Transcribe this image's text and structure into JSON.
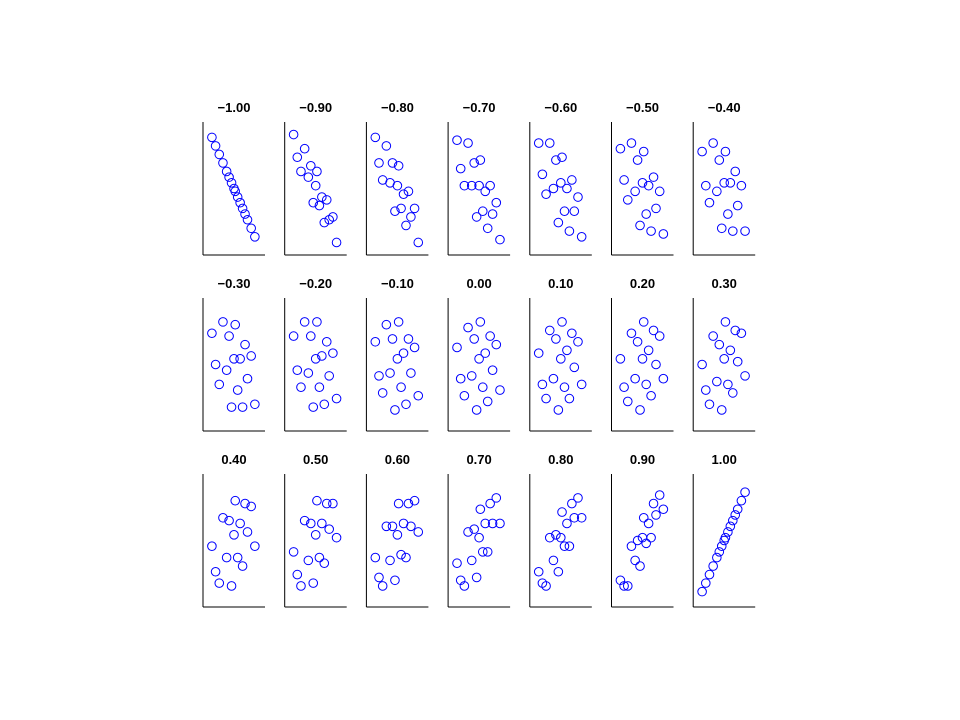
{
  "chart_data": [
    {
      "type": "scatter",
      "title": "−1.00",
      "color": "#0000ff",
      "xlim": [
        -2.2,
        2.2
      ],
      "ylim": [
        -2.2,
        2.2
      ],
      "x": [
        -1.8,
        -1.2,
        -0.9,
        -0.6,
        -0.4,
        -0.2,
        0,
        0.1,
        0.3,
        0.5,
        0.7,
        0.9,
        1.1,
        1.4,
        -1.5,
        1.7
      ],
      "values": [
        1.8,
        1.2,
        0.9,
        0.6,
        0.4,
        0.2,
        0,
        -0.1,
        -0.3,
        -0.5,
        -0.7,
        -0.9,
        -1.1,
        -1.4,
        1.5,
        -1.7
      ]
    },
    {
      "type": "scatter",
      "title": "−0.90",
      "color": "#0000ff",
      "xlim": [
        -2.2,
        2.2
      ],
      "ylim": [
        -2.2,
        2.2
      ],
      "x": [
        -1.8,
        -1.2,
        -0.9,
        -0.6,
        -0.4,
        -0.2,
        0,
        0.1,
        0.3,
        0.5,
        0.7,
        0.9,
        1.1,
        1.4,
        -1.5,
        1.7
      ],
      "values": [
        1.9,
        0.6,
        1.4,
        0.4,
        0.8,
        -0.5,
        0.1,
        0.6,
        -0.6,
        -0.3,
        -1.2,
        -0.4,
        -1.1,
        -1.0,
        1.1,
        -1.9
      ]
    },
    {
      "type": "scatter",
      "title": "−0.80",
      "color": "#0000ff",
      "xlim": [
        -2.2,
        2.2
      ],
      "ylim": [
        -2.2,
        2.2
      ],
      "x": [
        -1.8,
        -1.2,
        -0.9,
        -0.6,
        -0.4,
        -0.2,
        0,
        0.1,
        0.3,
        0.5,
        0.7,
        0.9,
        1.1,
        1.4,
        -1.5,
        1.7
      ],
      "values": [
        1.8,
        0.3,
        1.5,
        0.2,
        0.9,
        -0.8,
        0.1,
        0.8,
        -0.7,
        -0.2,
        -1.3,
        -0.1,
        -1.0,
        -0.7,
        0.9,
        -1.9
      ]
    },
    {
      "type": "scatter",
      "title": "−0.70",
      "color": "#0000ff",
      "xlim": [
        -2.2,
        2.2
      ],
      "ylim": [
        -2.2,
        2.2
      ],
      "x": [
        -1.8,
        -1.2,
        -0.9,
        -0.6,
        -0.4,
        -0.2,
        0,
        0.1,
        0.3,
        0.5,
        0.7,
        0.9,
        1.1,
        1.4,
        -1.5,
        1.7
      ],
      "values": [
        1.7,
        0.1,
        1.6,
        0.1,
        0.9,
        -1.0,
        0.1,
        1.0,
        -0.8,
        -0.1,
        -1.4,
        0.1,
        -0.9,
        -0.5,
        0.7,
        -1.8
      ]
    },
    {
      "type": "scatter",
      "title": "−0.60",
      "color": "#0000ff",
      "xlim": [
        -2.2,
        2.2
      ],
      "ylim": [
        -2.2,
        2.2
      ],
      "x": [
        -1.8,
        -1.2,
        -0.9,
        -0.6,
        -0.4,
        -0.2,
        0,
        0.1,
        0.3,
        0.5,
        0.7,
        0.9,
        1.1,
        1.4,
        -1.5,
        1.7
      ],
      "values": [
        1.6,
        -0.2,
        1.6,
        0,
        1.0,
        -1.2,
        0.2,
        1.1,
        -0.8,
        0,
        -1.5,
        0.3,
        -0.8,
        -0.3,
        0.5,
        -1.7
      ]
    },
    {
      "type": "scatter",
      "title": "−0.50",
      "color": "#0000ff",
      "xlim": [
        -2.2,
        2.2
      ],
      "ylim": [
        -2.2,
        2.2
      ],
      "x": [
        -1.8,
        -1.2,
        -0.9,
        -0.6,
        -0.4,
        -0.2,
        0,
        0.1,
        0.3,
        0.5,
        0.7,
        0.9,
        1.1,
        1.4,
        -1.5,
        1.7
      ],
      "values": [
        1.4,
        -0.4,
        1.6,
        -0.1,
        1.0,
        -1.3,
        0.2,
        1.3,
        -0.9,
        0.1,
        -1.5,
        0.4,
        -0.7,
        -0.1,
        0.3,
        -1.6
      ]
    },
    {
      "type": "scatter",
      "title": "−0.40",
      "color": "#0000ff",
      "xlim": [
        -2.2,
        2.2
      ],
      "ylim": [
        -2.2,
        2.2
      ],
      "x": [
        -1.8,
        -1.2,
        -0.9,
        -0.6,
        -0.4,
        -0.2,
        0,
        0.1,
        0.3,
        0.5,
        0.7,
        0.9,
        1.1,
        1.4,
        -1.5,
        1.7
      ],
      "values": [
        1.3,
        -0.5,
        1.6,
        -0.1,
        1.0,
        -1.4,
        0.2,
        1.3,
        -0.9,
        0.2,
        -1.5,
        0.6,
        -0.6,
        0.1,
        0.1,
        -1.5
      ]
    },
    {
      "type": "scatter",
      "title": "−0.30",
      "color": "#0000ff",
      "xlim": [
        -2.2,
        2.2
      ],
      "ylim": [
        -2.2,
        2.2
      ],
      "x": [
        -1.8,
        -1.2,
        -0.9,
        -0.6,
        -0.4,
        -0.2,
        0,
        0.1,
        0.3,
        0.5,
        0.7,
        0.9,
        1.1,
        1.4,
        -1.5,
        1.7
      ],
      "values": [
        1.1,
        -0.7,
        1.5,
        -0.2,
        1.0,
        -1.5,
        0.2,
        1.4,
        -0.9,
        0.2,
        -1.5,
        0.7,
        -0.5,
        0.3,
        0,
        -1.4
      ]
    },
    {
      "type": "scatter",
      "title": "−0.20",
      "color": "#0000ff",
      "xlim": [
        -2.2,
        2.2
      ],
      "ylim": [
        -2.2,
        2.2
      ],
      "x": [
        -1.8,
        -1.2,
        -0.9,
        -0.6,
        -0.4,
        -0.2,
        0,
        0.1,
        0.3,
        0.5,
        0.7,
        0.9,
        1.1,
        1.4,
        -1.5,
        1.7
      ],
      "values": [
        1.0,
        -0.8,
        1.5,
        -0.3,
        1.0,
        -1.5,
        0.2,
        1.5,
        -0.8,
        0.3,
        -1.4,
        0.8,
        -0.4,
        0.4,
        -0.2,
        -1.2
      ]
    },
    {
      "type": "scatter",
      "title": "−0.10",
      "color": "#0000ff",
      "xlim": [
        -2.2,
        2.2
      ],
      "ylim": [
        -2.2,
        2.2
      ],
      "x": [
        -1.8,
        -1.2,
        -0.9,
        -0.6,
        -0.4,
        -0.2,
        0,
        0.1,
        0.3,
        0.5,
        0.7,
        0.9,
        1.1,
        1.4,
        -1.5,
        1.7
      ],
      "values": [
        0.8,
        -1.0,
        1.4,
        -0.3,
        0.9,
        -1.6,
        0.2,
        1.5,
        -0.8,
        0.4,
        -1.4,
        0.9,
        -0.3,
        0.6,
        -0.4,
        -1.1
      ]
    },
    {
      "type": "scatter",
      "title": "0.00",
      "color": "#0000ff",
      "xlim": [
        -2.2,
        2.2
      ],
      "ylim": [
        -2.2,
        2.2
      ],
      "x": [
        -1.8,
        -1.2,
        -0.9,
        -0.6,
        -0.4,
        -0.2,
        0,
        0.1,
        0.3,
        0.5,
        0.7,
        0.9,
        1.1,
        1.4,
        -1.5,
        1.7
      ],
      "values": [
        0.6,
        -1.1,
        1.3,
        -0.4,
        0.9,
        -1.6,
        0.2,
        1.5,
        -0.8,
        0.4,
        -1.3,
        1.0,
        -0.2,
        0.7,
        -0.5,
        -0.9
      ]
    },
    {
      "type": "scatter",
      "title": "0.10",
      "color": "#0000ff",
      "xlim": [
        -2.2,
        2.2
      ],
      "ylim": [
        -2.2,
        2.2
      ],
      "x": [
        -1.8,
        -1.2,
        -0.9,
        -0.6,
        -0.4,
        -0.2,
        0,
        0.1,
        0.3,
        0.5,
        0.7,
        0.9,
        1.1,
        1.4,
        -1.5,
        1.7
      ],
      "values": [
        0.4,
        -1.2,
        1.2,
        -0.5,
        0.9,
        -1.6,
        0.2,
        1.5,
        -0.8,
        0.5,
        -1.2,
        1.1,
        -0.1,
        0.8,
        -0.7,
        -0.7
      ]
    },
    {
      "type": "scatter",
      "title": "0.20",
      "color": "#0000ff",
      "xlim": [
        -2.2,
        2.2
      ],
      "ylim": [
        -2.2,
        2.2
      ],
      "x": [
        -1.8,
        -1.2,
        -0.9,
        -0.6,
        -0.4,
        -0.2,
        0,
        0.1,
        0.3,
        0.5,
        0.7,
        0.9,
        1.1,
        1.4,
        -1.5,
        1.7
      ],
      "values": [
        0.2,
        -1.3,
        1.1,
        -0.5,
        0.8,
        -1.6,
        0.2,
        1.5,
        -0.7,
        0.5,
        -1.1,
        1.2,
        0,
        1.0,
        -0.8,
        -0.5
      ]
    },
    {
      "type": "scatter",
      "title": "0.30",
      "color": "#0000ff",
      "xlim": [
        -2.2,
        2.2
      ],
      "ylim": [
        -2.2,
        2.2
      ],
      "x": [
        -1.8,
        -1.2,
        -0.9,
        -0.6,
        -0.4,
        -0.2,
        0,
        0.1,
        0.3,
        0.5,
        0.7,
        0.9,
        1.1,
        1.4,
        -1.5,
        1.7
      ],
      "values": [
        0,
        -1.4,
        1.0,
        -0.6,
        0.7,
        -1.6,
        0.2,
        1.5,
        -0.7,
        0.5,
        -1.0,
        1.2,
        0.1,
        1.1,
        -0.9,
        -0.4
      ]
    },
    {
      "type": "scatter",
      "title": "0.40",
      "color": "#0000ff",
      "xlim": [
        -2.2,
        2.2
      ],
      "ylim": [
        -2.2,
        2.2
      ],
      "x": [
        -1.8,
        -1.2,
        -0.9,
        -0.6,
        -0.4,
        -0.2,
        0,
        0.1,
        0.3,
        0.5,
        0.7,
        0.9,
        1.1,
        1.4,
        -1.5,
        1.7
      ],
      "values": [
        -0.2,
        -1.5,
        0.8,
        -0.6,
        0.7,
        -1.6,
        0.2,
        1.4,
        -0.6,
        0.6,
        -0.9,
        1.3,
        0.3,
        1.2,
        -1.1,
        -0.2
      ]
    },
    {
      "type": "scatter",
      "title": "0.50",
      "color": "#0000ff",
      "xlim": [
        -2.2,
        2.2
      ],
      "ylim": [
        -2.2,
        2.2
      ],
      "x": [
        -1.8,
        -1.2,
        -0.9,
        -0.6,
        -0.4,
        -0.2,
        0,
        0.1,
        0.3,
        0.5,
        0.7,
        0.9,
        1.1,
        1.4,
        -1.5,
        1.7
      ],
      "values": [
        -0.4,
        -1.6,
        0.7,
        -0.7,
        0.6,
        -1.5,
        0.2,
        1.4,
        -0.6,
        0.6,
        -0.8,
        1.3,
        0.4,
        1.3,
        -1.2,
        0.1
      ]
    },
    {
      "type": "scatter",
      "title": "0.60",
      "color": "#0000ff",
      "xlim": [
        -2.2,
        2.2
      ],
      "ylim": [
        -2.2,
        2.2
      ],
      "x": [
        -1.8,
        -1.2,
        -0.9,
        -0.6,
        -0.4,
        -0.2,
        0,
        0.1,
        0.3,
        0.5,
        0.7,
        0.9,
        1.1,
        1.4,
        -1.5,
        1.7
      ],
      "values": [
        -0.6,
        -1.6,
        0.5,
        -0.7,
        0.5,
        -1.4,
        0.2,
        1.3,
        -0.5,
        0.6,
        -0.6,
        1.3,
        0.5,
        1.4,
        -1.3,
        0.3
      ]
    },
    {
      "type": "scatter",
      "title": "0.70",
      "color": "#0000ff",
      "xlim": [
        -2.2,
        2.2
      ],
      "ylim": [
        -2.2,
        2.2
      ],
      "x": [
        -1.8,
        -1.2,
        -0.9,
        -0.6,
        -0.4,
        -0.2,
        0,
        0.1,
        0.3,
        0.5,
        0.7,
        0.9,
        1.1,
        1.4,
        -1.5,
        1.7
      ],
      "values": [
        -0.8,
        -1.6,
        0.3,
        -0.7,
        0.4,
        -1.3,
        0.1,
        1.1,
        -0.4,
        0.6,
        -0.4,
        1.3,
        0.6,
        1.5,
        -1.4,
        0.6
      ]
    },
    {
      "type": "scatter",
      "title": "0.80",
      "color": "#0000ff",
      "xlim": [
        -2.2,
        2.2
      ],
      "ylim": [
        -2.2,
        2.2
      ],
      "x": [
        -1.8,
        -1.2,
        -0.9,
        -0.6,
        -0.4,
        -0.2,
        0,
        0.1,
        0.3,
        0.5,
        0.7,
        0.9,
        1.1,
        1.4,
        -1.5,
        1.7
      ],
      "values": [
        -1.1,
        -1.6,
        0.1,
        -0.7,
        0.2,
        -1.1,
        0.1,
        1.0,
        -0.2,
        0.6,
        -0.2,
        1.3,
        0.8,
        1.5,
        -1.5,
        0.8
      ]
    },
    {
      "type": "scatter",
      "title": "0.90",
      "color": "#0000ff",
      "xlim": [
        -2.2,
        2.2
      ],
      "ylim": [
        -2.2,
        2.2
      ],
      "x": [
        -1.8,
        -1.2,
        -0.9,
        -0.6,
        -0.4,
        -0.2,
        0,
        0.1,
        0.3,
        0.5,
        0.7,
        0.9,
        1.1,
        1.4,
        -1.5,
        1.7
      ],
      "values": [
        -1.4,
        -1.6,
        -0.2,
        -0.7,
        0,
        -0.9,
        0.1,
        0.8,
        -0.1,
        0.6,
        0.1,
        1.3,
        0.9,
        1.6,
        -1.6,
        1.1
      ]
    },
    {
      "type": "scatter",
      "title": "1.00",
      "color": "#0000ff",
      "xlim": [
        -2.2,
        2.2
      ],
      "ylim": [
        -2.2,
        2.2
      ],
      "x": [
        -1.8,
        -1.2,
        -0.9,
        -0.6,
        -0.4,
        -0.2,
        0,
        0.1,
        0.3,
        0.5,
        0.7,
        0.9,
        1.1,
        1.4,
        -1.5,
        1.7
      ],
      "values": [
        -1.8,
        -1.2,
        -0.9,
        -0.6,
        -0.4,
        -0.2,
        0,
        0.1,
        0.3,
        0.5,
        0.7,
        0.9,
        1.1,
        1.4,
        -1.5,
        1.7
      ]
    }
  ]
}
